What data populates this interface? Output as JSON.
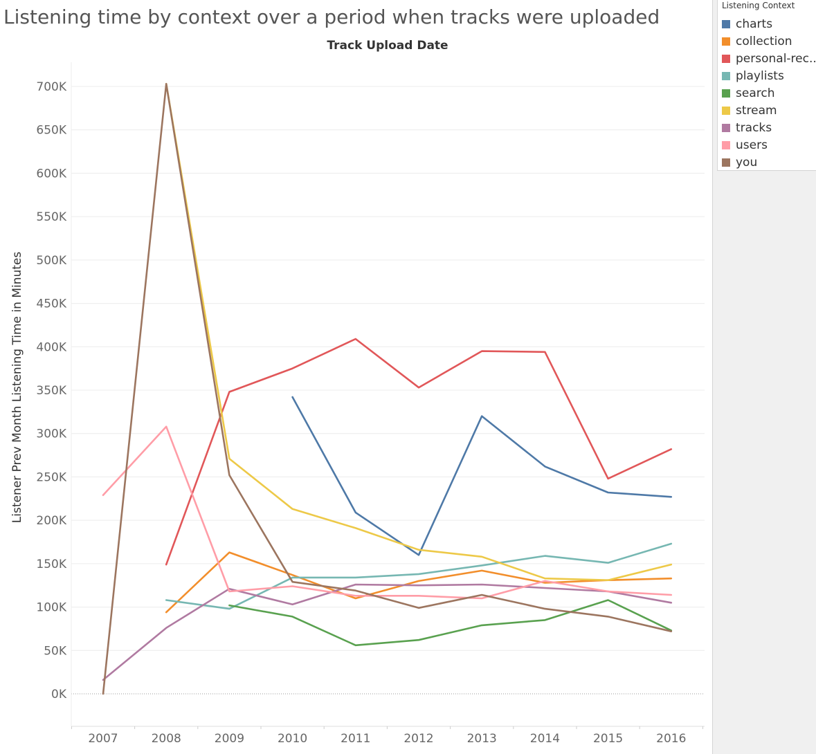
{
  "chart_data": {
    "type": "line",
    "title": "Listening time by context over a period when tracks were uploaded",
    "xlabel": "Track Upload Date",
    "ylabel": "Listener Prev Month Listening Time in Minutes",
    "x": [
      "2007",
      "2008",
      "2009",
      "2010",
      "2011",
      "2012",
      "2013",
      "2014",
      "2015",
      "2016"
    ],
    "ylim": [
      -50000,
      725000
    ],
    "yticks": [
      0,
      50000,
      100000,
      150000,
      200000,
      250000,
      300000,
      350000,
      400000,
      450000,
      500000,
      550000,
      600000,
      650000,
      700000
    ],
    "ytick_labels": [
      "0K",
      "50K",
      "100K",
      "150K",
      "200K",
      "250K",
      "300K",
      "350K",
      "400K",
      "450K",
      "500K",
      "550K",
      "600K",
      "650K",
      "700K"
    ],
    "grid": true,
    "legend_title": "Listening Context",
    "legend_position": "top-right",
    "series": [
      {
        "name": "charts",
        "color": "#4e79a7",
        "values": [
          null,
          null,
          null,
          342000,
          209000,
          160000,
          320000,
          262000,
          232000,
          227000
        ]
      },
      {
        "name": "collection",
        "color": "#f28e2b",
        "values": [
          null,
          94000,
          163000,
          137000,
          110000,
          130000,
          142000,
          128000,
          131000,
          133000
        ]
      },
      {
        "name": "personal-rec..",
        "color": "#e15759",
        "values": [
          null,
          149000,
          348000,
          375000,
          409000,
          353000,
          395000,
          394000,
          248000,
          282000
        ]
      },
      {
        "name": "playlists",
        "color": "#76b7b2",
        "values": [
          null,
          108000,
          98000,
          134000,
          134000,
          138000,
          148000,
          159000,
          151000,
          173000
        ]
      },
      {
        "name": "search",
        "color": "#59a14f",
        "values": [
          null,
          null,
          102000,
          89000,
          56000,
          62000,
          79000,
          85000,
          108000,
          73000
        ]
      },
      {
        "name": "stream",
        "color": "#edc948",
        "values": [
          null,
          703000,
          271000,
          213000,
          191000,
          166000,
          158000,
          133000,
          131000,
          149000
        ]
      },
      {
        "name": "tracks",
        "color": "#b07aa1",
        "values": [
          16000,
          76000,
          121000,
          103000,
          126000,
          125000,
          126000,
          122000,
          118000,
          105000
        ]
      },
      {
        "name": "users",
        "color": "#ff9da7",
        "values": [
          229000,
          308000,
          118000,
          124000,
          113000,
          113000,
          110000,
          130000,
          118000,
          114000
        ]
      },
      {
        "name": "you",
        "color": "#9c755f",
        "values": [
          0,
          703000,
          252000,
          129000,
          119000,
          99000,
          114000,
          98000,
          89000,
          72000
        ]
      }
    ]
  }
}
